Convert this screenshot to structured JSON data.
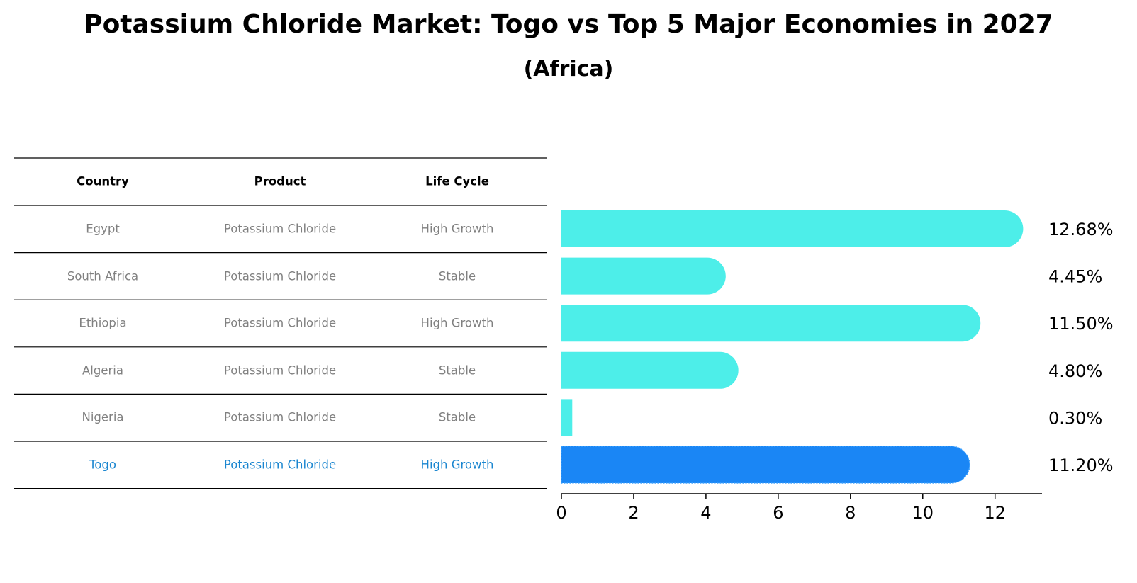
{
  "chart_data": {
    "type": "table+bar",
    "title": "Potassium Chloride Market: Togo vs Top 5 Major Economies in 2027",
    "subtitle": "(Africa)",
    "table": {
      "columns": [
        "Country",
        "Product",
        "Life Cycle"
      ],
      "rows": [
        {
          "country": "Egypt",
          "product": "Potassium Chloride",
          "life_cycle": "High Growth"
        },
        {
          "country": "South Africa",
          "product": "Potassium Chloride",
          "life_cycle": "Stable"
        },
        {
          "country": "Ethiopia",
          "product": "Potassium Chloride",
          "life_cycle": "High Growth"
        },
        {
          "country": "Algeria",
          "product": "Potassium Chloride",
          "life_cycle": "Stable"
        },
        {
          "country": "Nigeria",
          "product": "Potassium Chloride",
          "life_cycle": "Stable"
        },
        {
          "country": "Togo",
          "product": "Potassium Chloride",
          "life_cycle": "High Growth",
          "highlight": true
        }
      ]
    },
    "bars": {
      "categories": [
        "Egypt",
        "South Africa",
        "Ethiopia",
        "Algeria",
        "Nigeria",
        "Togo"
      ],
      "values": [
        12.68,
        4.45,
        11.5,
        4.8,
        0.3,
        11.2
      ],
      "labels": [
        "12.68%",
        "4.45%",
        "11.50%",
        "4.80%",
        "0.30%",
        "11.20%"
      ],
      "xlim": [
        0,
        13.3
      ],
      "xticks": [
        0,
        2,
        4,
        6,
        8,
        10,
        12
      ]
    },
    "colors": {
      "bar": "#4deee9",
      "highlight_bar": "#1a86f5",
      "highlight_text": "#1a86d0",
      "cell_text": "#808080"
    }
  }
}
